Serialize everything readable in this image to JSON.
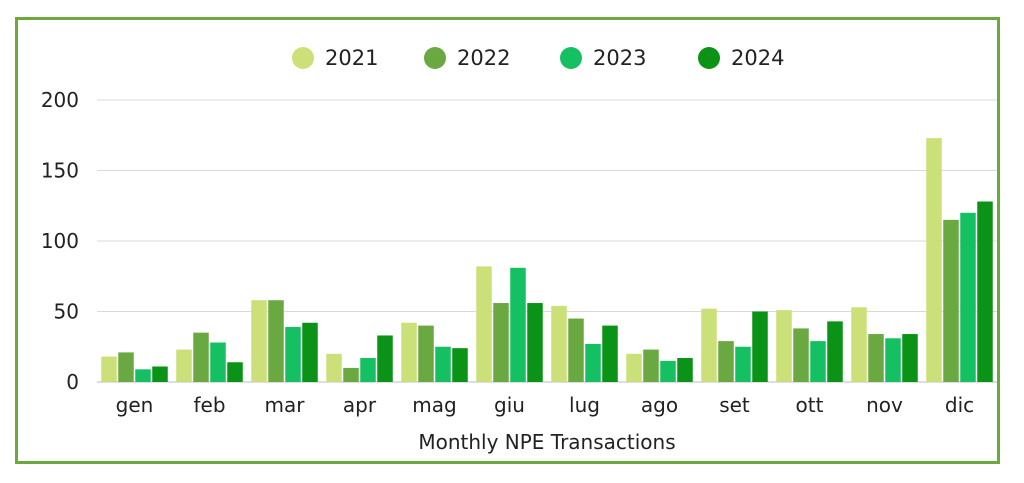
{
  "chart_data": {
    "type": "bar",
    "title": "",
    "xlabel": "Monthly NPE Transactions",
    "ylabel": "",
    "ylim": [
      0,
      200
    ],
    "yticks": [
      0,
      50,
      100,
      150,
      200
    ],
    "grid": true,
    "legend_position": "top",
    "categories": [
      "gen",
      "feb",
      "mar",
      "apr",
      "mag",
      "giu",
      "lug",
      "ago",
      "set",
      "ott",
      "nov",
      "dic"
    ],
    "series": [
      {
        "name": "2021",
        "color": "#cce07a",
        "values": [
          18,
          23,
          58,
          20,
          42,
          82,
          54,
          20,
          52,
          51,
          53,
          173
        ]
      },
      {
        "name": "2022",
        "color": "#6aa842",
        "values": [
          21,
          35,
          58,
          10,
          40,
          56,
          45,
          23,
          29,
          38,
          34,
          115
        ]
      },
      {
        "name": "2023",
        "color": "#15c062",
        "values": [
          9,
          28,
          39,
          17,
          25,
          81,
          27,
          15,
          25,
          29,
          31,
          120
        ]
      },
      {
        "name": "2024",
        "color": "#0a9316",
        "values": [
          11,
          14,
          42,
          33,
          24,
          56,
          40,
          17,
          50,
          43,
          34,
          128
        ]
      }
    ]
  }
}
